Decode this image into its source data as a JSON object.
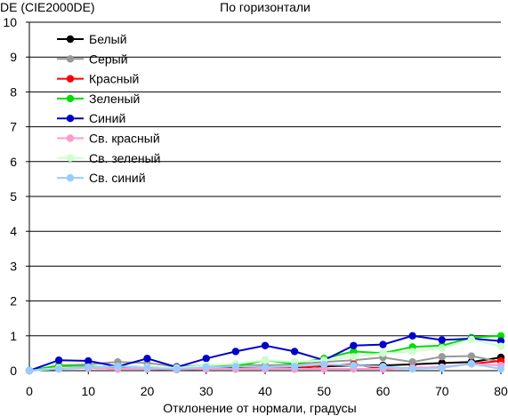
{
  "chart_data": {
    "type": "line",
    "title": "По горизонтали",
    "ylabel": "DE (CIE2000DE)",
    "xlabel": "Отклонение от нормали, градусы",
    "ylim": [
      0,
      10
    ],
    "xlim": [
      0,
      80
    ],
    "yticks": [
      0,
      1,
      2,
      3,
      4,
      5,
      6,
      7,
      8,
      9,
      10
    ],
    "xticks": [
      0,
      10,
      20,
      30,
      40,
      50,
      60,
      70,
      80
    ],
    "grid": "horizontal",
    "legend_position": "top-left",
    "x": [
      0,
      5,
      10,
      15,
      20,
      25,
      30,
      35,
      40,
      45,
      50,
      55,
      60,
      65,
      70,
      75,
      80
    ],
    "series": [
      {
        "name": "Белый",
        "color": "#000000",
        "values": [
          0,
          0.08,
          0.1,
          0.12,
          0.1,
          0.08,
          0.12,
          0.1,
          0.08,
          0.1,
          0.12,
          0.15,
          0.15,
          0.18,
          0.22,
          0.25,
          0.38
        ]
      },
      {
        "name": "Серый",
        "color": "#999999",
        "values": [
          0,
          0.15,
          0.18,
          0.25,
          0.22,
          0.12,
          0.15,
          0.18,
          0.15,
          0.18,
          0.25,
          0.3,
          0.38,
          0.25,
          0.4,
          0.42,
          0.25
        ]
      },
      {
        "name": "Красный",
        "color": "#ff0000",
        "values": [
          0,
          0.1,
          0.08,
          0.05,
          0.05,
          0.03,
          0.05,
          0.05,
          0.1,
          0.05,
          0.15,
          0.18,
          0.05,
          0.08,
          0.1,
          0.2,
          0.28
        ]
      },
      {
        "name": "Зеленый",
        "color": "#00dd00",
        "values": [
          0,
          0.15,
          0.12,
          0.1,
          0.1,
          0.08,
          0.15,
          0.12,
          0.3,
          0.2,
          0.35,
          0.55,
          0.5,
          0.68,
          0.72,
          0.95,
          1.0
        ]
      },
      {
        "name": "Синий",
        "color": "#0000cc",
        "values": [
          0,
          0.3,
          0.28,
          0.12,
          0.35,
          0.1,
          0.35,
          0.55,
          0.72,
          0.55,
          0.3,
          0.72,
          0.75,
          1.0,
          0.88,
          0.92,
          0.85
        ]
      },
      {
        "name": "Св. красный",
        "color": "#ff99cc",
        "values": [
          0,
          0.05,
          0.08,
          0.05,
          0.05,
          0.03,
          0.05,
          0.05,
          0.05,
          0.05,
          0.05,
          0.05,
          0.05,
          0.08,
          0.1,
          0.2,
          0.15
        ]
      },
      {
        "name": "Св. зеленый",
        "color": "#ccffcc",
        "values": [
          0,
          0.08,
          0.1,
          0.12,
          0.1,
          0.08,
          0.15,
          0.2,
          0.3,
          0.25,
          0.3,
          0.4,
          0.5,
          0.55,
          0.65,
          0.9,
          0.7
        ]
      },
      {
        "name": "Св. синий",
        "color": "#99ccff",
        "values": [
          0,
          0.05,
          0.1,
          0.12,
          0.08,
          0.05,
          0.1,
          0.12,
          0.1,
          0.12,
          0.18,
          0.15,
          0.12,
          0.05,
          0.08,
          0.2,
          0.05
        ]
      }
    ]
  }
}
